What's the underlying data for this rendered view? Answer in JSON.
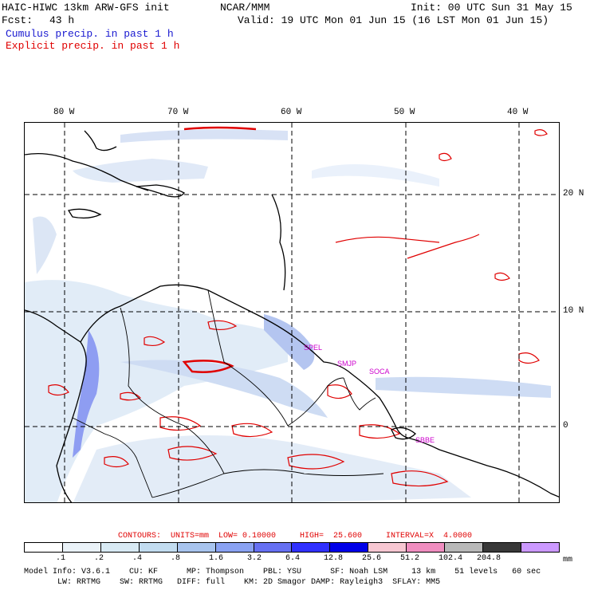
{
  "header": {
    "model_title": "HAIC-HIWC 13km ARW-GFS init",
    "org": "NCAR/MMM",
    "init": "Init: 00 UTC Sun 31 May 15",
    "fcst_label": "Fcst:",
    "fcst_value": "43 h",
    "valid": "Valid: 19 UTC Mon 01 Jun 15 (16 LST Mon 01 Jun 15)",
    "line_cumulus": "Cumulus precip. in past 1 h",
    "line_explicit": "Explicit precip. in past 1 h"
  },
  "map": {
    "lon_labels": [
      "80 W",
      "70 W",
      "60 W",
      "50 W",
      "40 W"
    ],
    "lat_labels": [
      "20 N",
      "10 N",
      "0"
    ],
    "stations": [
      "SPEL",
      "SMJP",
      "SOCA",
      "SBBE"
    ]
  },
  "legend": {
    "contours": "CONTOURS:  UNITS=mm  LOW= 0.10000     HIGH=  25.600     INTERVAL=X  4.0000",
    "ticks": [
      ".1",
      ".2",
      ".4",
      ".8",
      "1.6",
      "3.2",
      "6.4",
      "12.8",
      "25.6",
      "51.2",
      "102.4",
      "204.8"
    ],
    "units": "mm",
    "colors": [
      "#ffffff",
      "#eaf2f8",
      "#d8eaf4",
      "#c2dcf0",
      "#a8c4ee",
      "#8aa2f2",
      "#6670f2",
      "#3030ff",
      "#0000e8",
      "#f7c7d2",
      "#f08ec0",
      "#b8b8b8",
      "#383838",
      "#cc99ff"
    ]
  },
  "footer": {
    "line1": "Model Info: V3.6.1    CU: KF      MP: Thompson    PBL: YSU      SF: Noah LSM     13 km    51 levels   60 sec",
    "line2": "       LW: RRTMG    SW: RRTMG   DIFF: full    KM: 2D Smagor DAMP: Rayleigh3  SFLAY: MM5"
  }
}
